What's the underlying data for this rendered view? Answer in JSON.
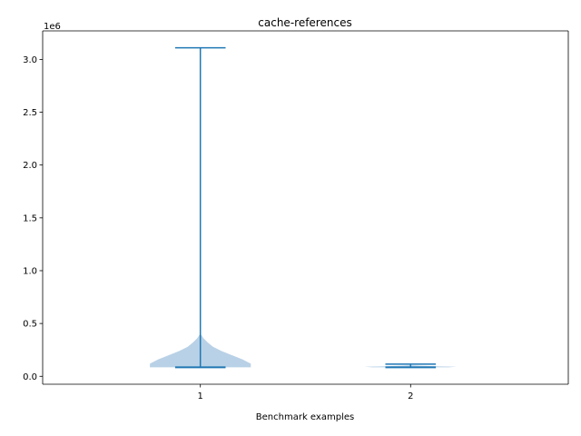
{
  "chart_data": {
    "type": "violin",
    "title": "cache-references",
    "xlabel": "Benchmark examples",
    "ylabel": "",
    "y_offset_text": "1e6",
    "y_scale_factor": 1000000,
    "categories": [
      "1",
      "2"
    ],
    "x_positions": [
      1,
      2
    ],
    "xlim": [
      0.25,
      2.75
    ],
    "ylim": [
      -75000,
      3270000
    ],
    "y_ticks": [
      0,
      500000,
      1000000,
      1500000,
      2000000,
      2500000,
      3000000
    ],
    "y_tick_labels": [
      "0.0",
      "0.5",
      "1.0",
      "1.5",
      "2.0",
      "2.5",
      "3.0"
    ],
    "x_ticks": [
      1,
      2
    ],
    "x_tick_labels": [
      "1",
      "2"
    ],
    "colors": {
      "body": "#b9d1e6",
      "lines": "#1f77b4",
      "axes": "#000000"
    },
    "violins": [
      {
        "position": 1,
        "min": 85000,
        "max": 3110000,
        "median": 85000,
        "density": [
          {
            "y": 85000,
            "w": 0.24
          },
          {
            "y": 120000,
            "w": 0.24
          },
          {
            "y": 160000,
            "w": 0.2
          },
          {
            "y": 200000,
            "w": 0.15
          },
          {
            "y": 240000,
            "w": 0.1
          },
          {
            "y": 280000,
            "w": 0.06
          },
          {
            "y": 320000,
            "w": 0.035
          },
          {
            "y": 360000,
            "w": 0.015
          },
          {
            "y": 390000,
            "w": 0.005
          },
          {
            "y": 400000,
            "w": 0.0
          }
        ]
      },
      {
        "position": 2,
        "min": 85000,
        "max": 115000,
        "median": 90000,
        "density": [
          {
            "y": 85000,
            "w": 0.18
          },
          {
            "y": 90000,
            "w": 0.22
          },
          {
            "y": 95000,
            "w": 0.12
          },
          {
            "y": 100000,
            "w": 0.04
          },
          {
            "y": 105000,
            "w": 0.0
          }
        ]
      }
    ]
  }
}
